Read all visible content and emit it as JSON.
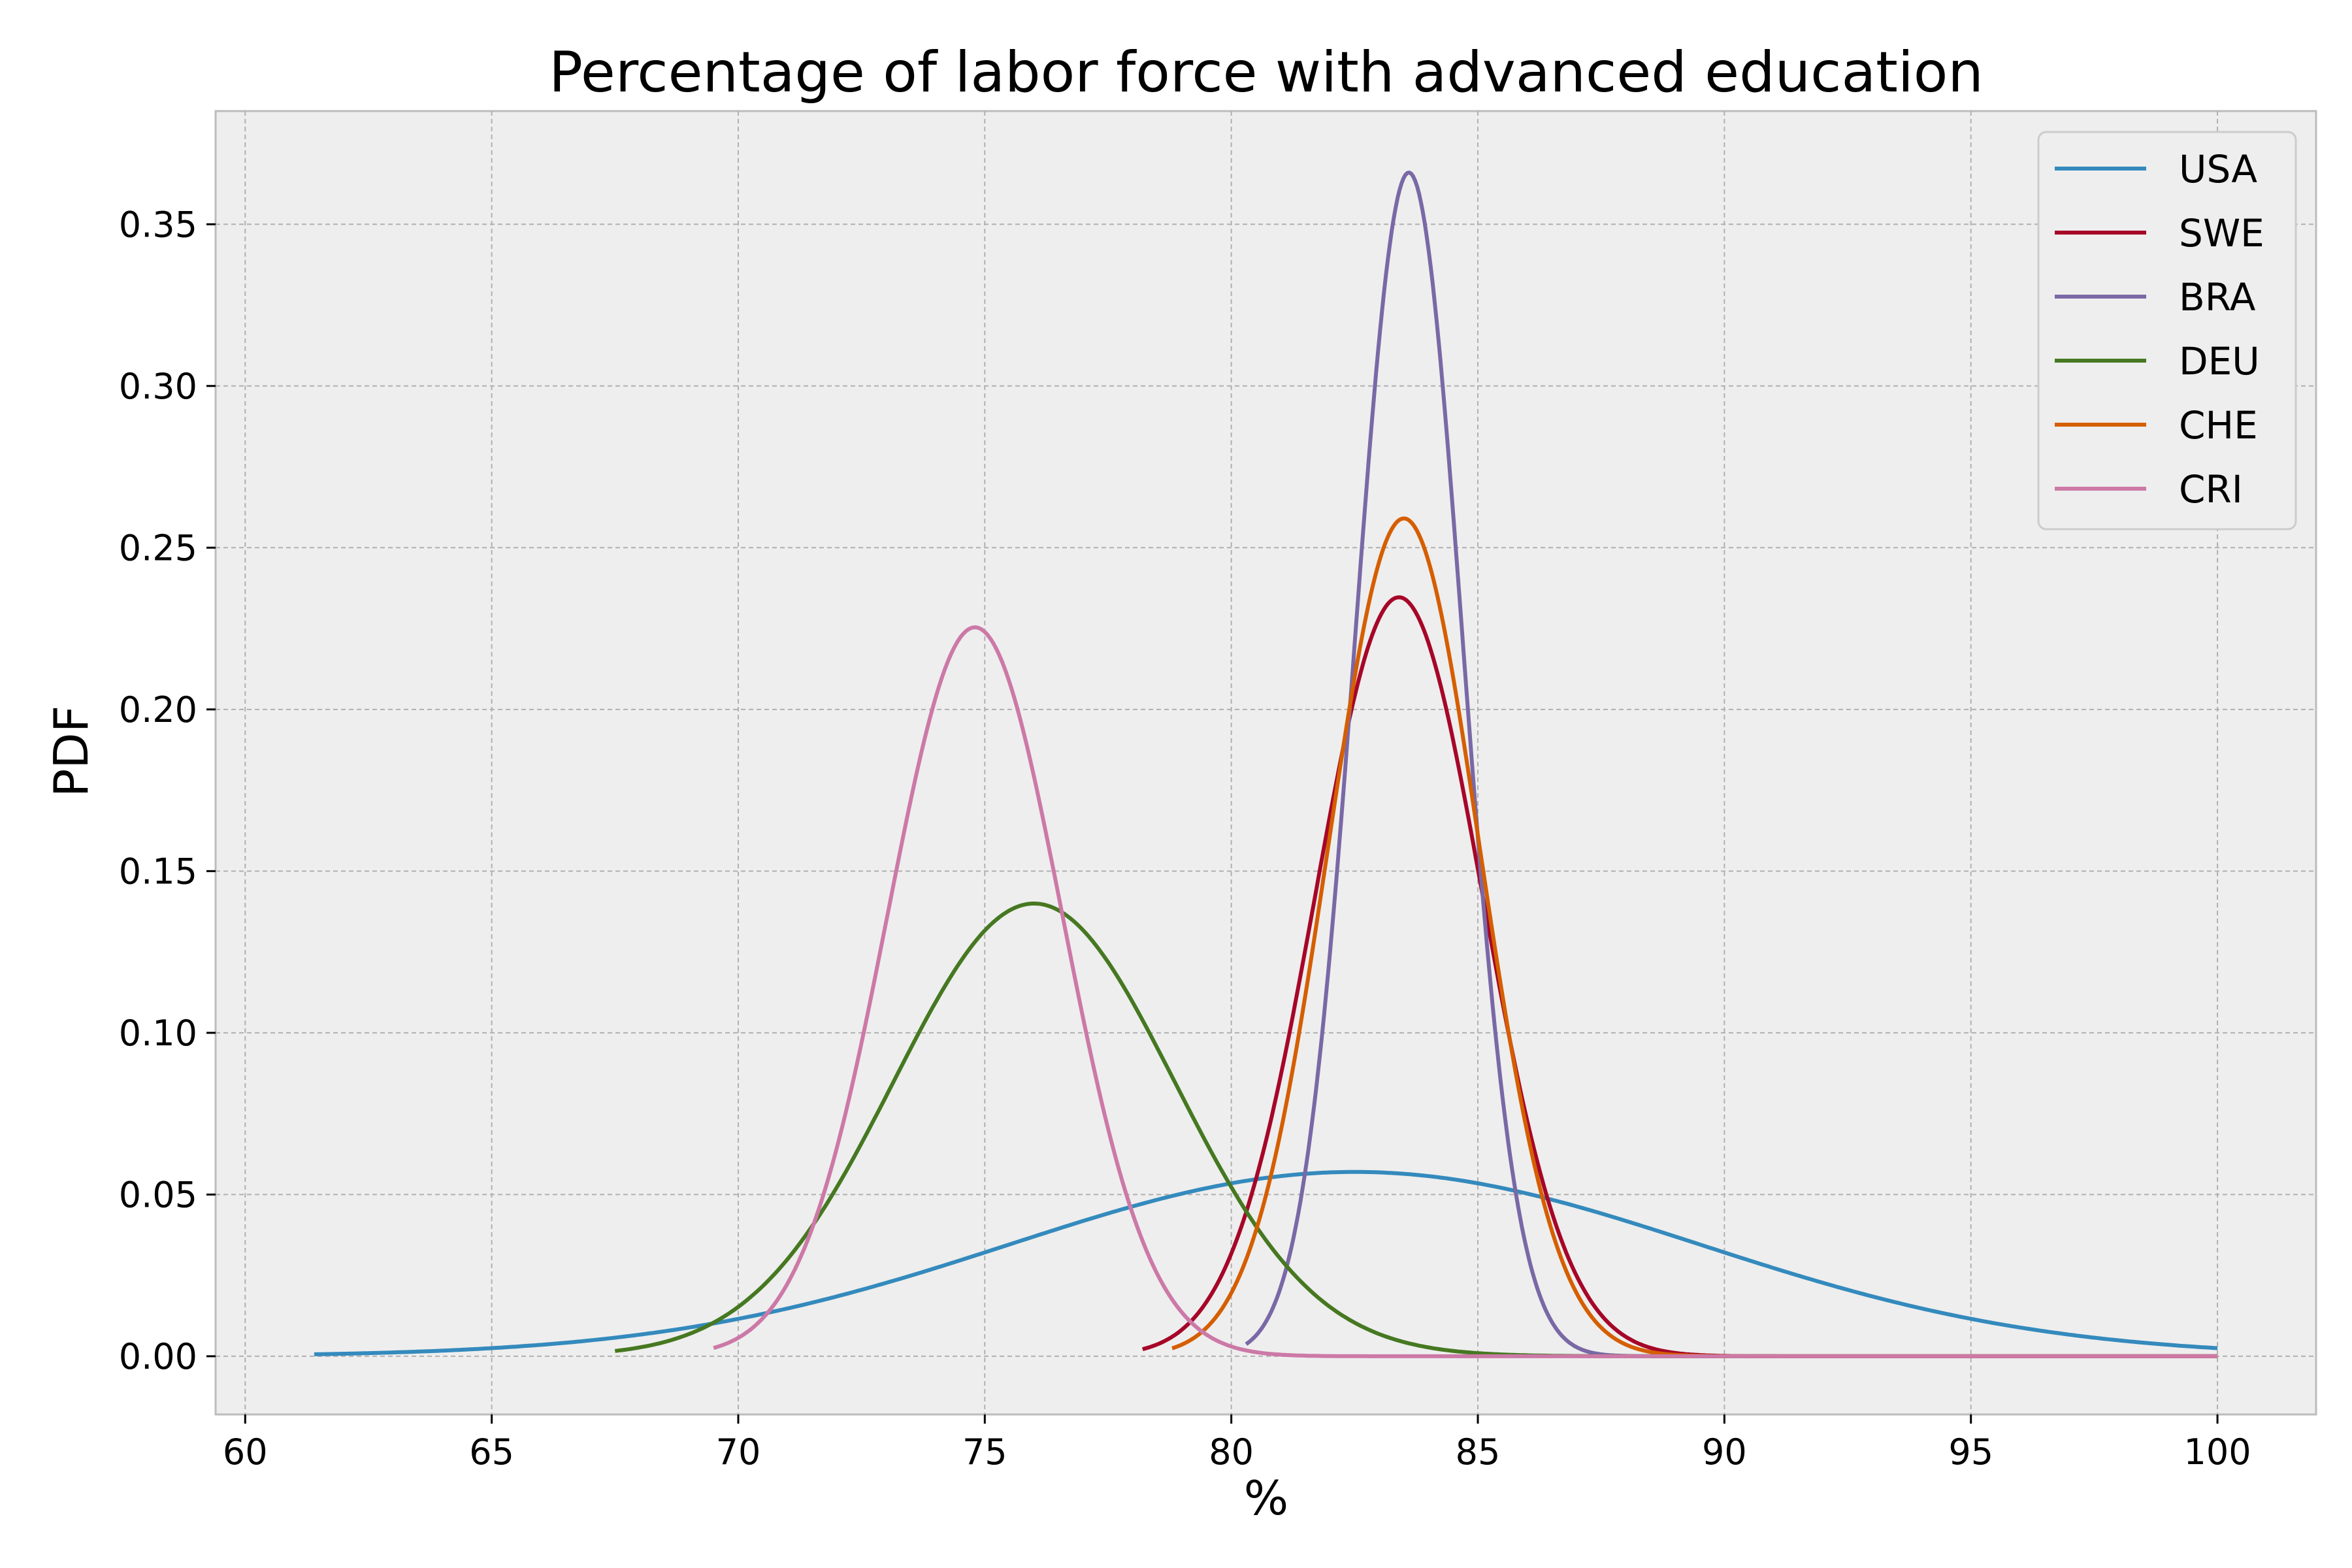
{
  "chart_data": {
    "type": "line",
    "title": "Percentage of labor force with advanced education",
    "xlabel": "%",
    "ylabel": "PDF",
    "xlim": [
      59.4,
      102.0
    ],
    "ylim": [
      -0.018,
      0.385
    ],
    "xticks": [
      60,
      65,
      70,
      75,
      80,
      85,
      90,
      95,
      100
    ],
    "yticks": [
      0.0,
      0.05,
      0.1,
      0.15,
      0.2,
      0.25,
      0.3,
      0.35
    ],
    "ytick_labels": [
      "0.00",
      "0.05",
      "0.10",
      "0.15",
      "0.20",
      "0.25",
      "0.30",
      "0.35"
    ],
    "grid": true,
    "legend_position": "top-right",
    "background_color": "#eeeeee",
    "series": [
      {
        "name": "USA",
        "color": "#348abd",
        "distribution": "normal",
        "mean": 82.5,
        "std": 7.0,
        "x_start": 61.4,
        "x_end": 100
      },
      {
        "name": "SWE",
        "color": "#a60628",
        "distribution": "normal",
        "mean": 83.4,
        "std": 1.7,
        "x_start": 78.2,
        "x_end": 100
      },
      {
        "name": "BRA",
        "color": "#7a68a6",
        "distribution": "normal",
        "mean": 83.6,
        "std": 1.09,
        "x_start": 80.3,
        "x_end": 100
      },
      {
        "name": "DEU",
        "color": "#467821",
        "distribution": "normal",
        "mean": 76.0,
        "std": 2.85,
        "x_start": 67.5,
        "x_end": 100
      },
      {
        "name": "CHE",
        "color": "#d55e00",
        "distribution": "normal",
        "mean": 83.5,
        "std": 1.54,
        "x_start": 78.8,
        "x_end": 100
      },
      {
        "name": "CRI",
        "color": "#cc79a7",
        "distribution": "normal",
        "mean": 74.8,
        "std": 1.77,
        "x_start": 69.5,
        "x_end": 100
      }
    ]
  }
}
